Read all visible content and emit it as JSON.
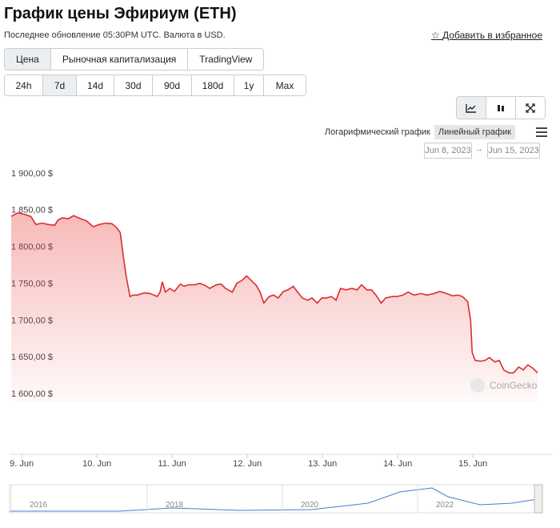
{
  "header": {
    "title": "График цены Эфириум (ETH)",
    "subtitle": "Последнее обновление 05:30PM UTC. Валюта в USD.",
    "favorite": "Добавить в избранное"
  },
  "tabs": {
    "items": [
      "Цена",
      "Рыночная капитализация",
      "TradingView"
    ],
    "active": 0
  },
  "ranges": {
    "items": [
      "24h",
      "7d",
      "14d",
      "30d",
      "90d",
      "180d",
      "1y",
      "Max"
    ],
    "active": 1
  },
  "scale_options": {
    "items": [
      "Логарифмический график",
      "Линейный график"
    ],
    "active": 1
  },
  "date_range": {
    "from": "Jun 8, 2023",
    "separator": "→",
    "to": "Jun 15, 2023"
  },
  "watermark": "CoinGecko",
  "navigator": {
    "labels": [
      "2016",
      "2018",
      "2020",
      "2022"
    ]
  },
  "chart_data": {
    "type": "area",
    "color": "#dd2c2c",
    "x": [
      8.86,
      8.95,
      9.03,
      9.12,
      9.19,
      9.27,
      9.35,
      9.44,
      9.48,
      9.54,
      9.62,
      9.69,
      9.78,
      9.86,
      9.95,
      10.03,
      10.12,
      10.2,
      10.26,
      10.31,
      10.35,
      10.39,
      10.44,
      10.48,
      10.54,
      10.63,
      10.71,
      10.8,
      10.84,
      10.87,
      10.91,
      10.97,
      11.03,
      11.11,
      11.16,
      11.22,
      11.3,
      11.37,
      11.44,
      11.5,
      11.59,
      11.65,
      11.71,
      11.8,
      11.86,
      11.93,
      11.99,
      12.05,
      12.12,
      12.17,
      12.22,
      12.29,
      12.35,
      12.41,
      12.48,
      12.54,
      12.61,
      12.67,
      12.73,
      12.8,
      12.86,
      12.93,
      12.99,
      13.05,
      13.12,
      13.18,
      13.24,
      13.31,
      13.39,
      13.46,
      13.52,
      13.59,
      13.65,
      13.71,
      13.78,
      13.84,
      13.93,
      13.99,
      14.07,
      14.14,
      14.22,
      14.31,
      14.39,
      14.48,
      14.56,
      14.65,
      14.73,
      14.8,
      14.86,
      14.93,
      14.97,
      14.99,
      15.03,
      15.1,
      15.16,
      15.22,
      15.29,
      15.35,
      15.41,
      15.48,
      15.54,
      15.61,
      15.67,
      15.73,
      15.8,
      15.86
    ],
    "values": [
      1842,
      1847,
      1845,
      1842,
      1831,
      1833,
      1831,
      1830,
      1837,
      1840,
      1839,
      1843,
      1839,
      1836,
      1828,
      1831,
      1833,
      1832,
      1827,
      1820,
      1788,
      1760,
      1733,
      1735,
      1735,
      1738,
      1737,
      1733,
      1739,
      1753,
      1739,
      1744,
      1740,
      1750,
      1747,
      1749,
      1749,
      1751,
      1748,
      1744,
      1749,
      1750,
      1744,
      1739,
      1751,
      1755,
      1761,
      1755,
      1748,
      1739,
      1724,
      1733,
      1735,
      1731,
      1740,
      1742,
      1747,
      1739,
      1731,
      1728,
      1731,
      1724,
      1731,
      1731,
      1733,
      1728,
      1744,
      1742,
      1744,
      1742,
      1749,
      1742,
      1742,
      1735,
      1724,
      1731,
      1733,
      1733,
      1735,
      1739,
      1735,
      1737,
      1735,
      1737,
      1740,
      1737,
      1734,
      1735,
      1733,
      1726,
      1700,
      1657,
      1646,
      1645,
      1646,
      1650,
      1644,
      1646,
      1633,
      1629,
      1629,
      1637,
      1633,
      1640,
      1635,
      1629
    ],
    "xlim": [
      8.86,
      15.86
    ],
    "xticks": [
      {
        "value": 9,
        "label": "9. Jun"
      },
      {
        "value": 10,
        "label": "10. Jun"
      },
      {
        "value": 11,
        "label": "11. Jun"
      },
      {
        "value": 12,
        "label": "12. Jun"
      },
      {
        "value": 13,
        "label": "13. Jun"
      },
      {
        "value": 14,
        "label": "14. Jun"
      },
      {
        "value": 15,
        "label": "15. Jun"
      }
    ],
    "ylim": [
      1590,
      1910
    ],
    "yticks": [
      {
        "value": 1600,
        "label": "1 600,00 $"
      },
      {
        "value": 1650,
        "label": "1 650,00 $"
      },
      {
        "value": 1700,
        "label": "1 700,00 $"
      },
      {
        "value": 1750,
        "label": "1 750,00 $"
      },
      {
        "value": 1800,
        "label": "1 800,00 $"
      },
      {
        "value": 1850,
        "label": "1 850,00 $"
      },
      {
        "value": 1900,
        "label": "1 900,00 $"
      }
    ]
  }
}
